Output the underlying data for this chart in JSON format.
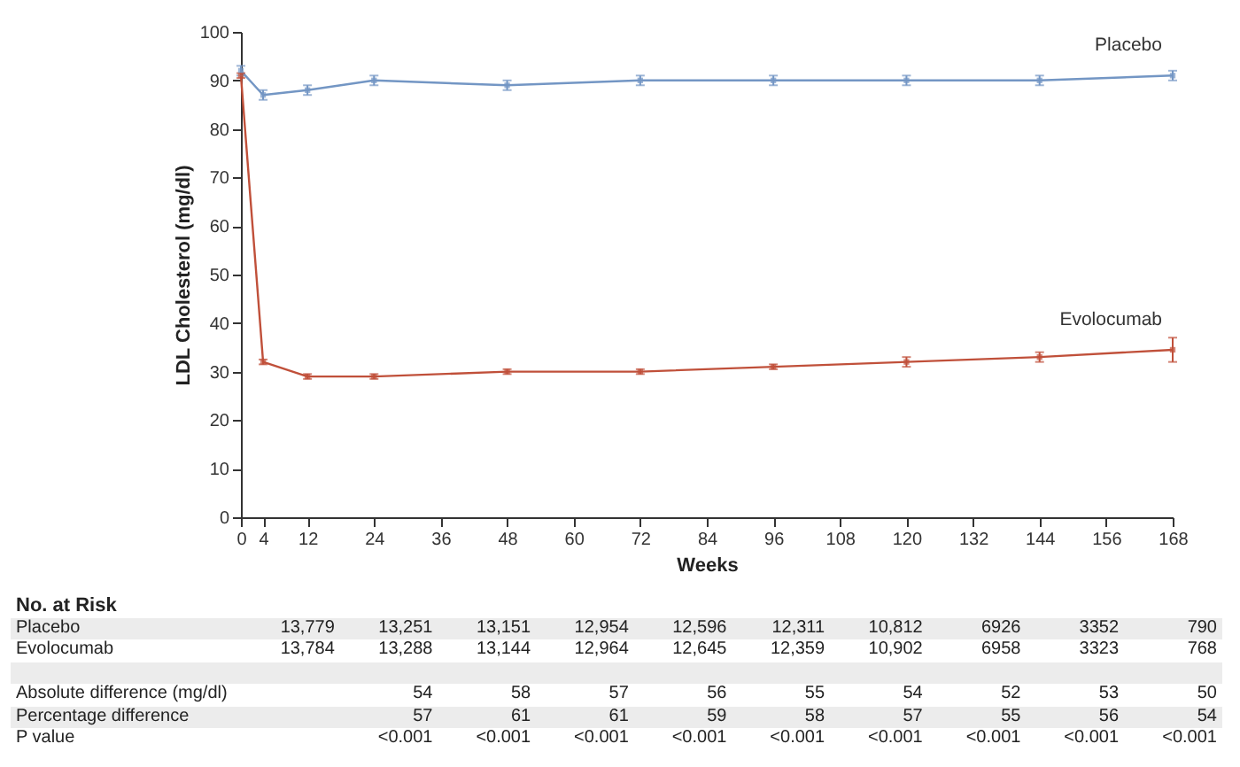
{
  "chart_data": {
    "type": "line",
    "xlabel": "Weeks",
    "ylabel": "LDL Cholesterol (mg/dl)",
    "x": [
      0,
      4,
      12,
      24,
      48,
      72,
      96,
      120,
      144,
      168
    ],
    "series": [
      {
        "name": "Placebo",
        "color": "#7396c4",
        "values": [
          92,
          87,
          88,
          90,
          89,
          90,
          90,
          90,
          90,
          91
        ],
        "errors": [
          1,
          1,
          1,
          1,
          1,
          1,
          1,
          1,
          1,
          1
        ]
      },
      {
        "name": "Evolocumab",
        "color": "#c0503a",
        "values": [
          91,
          32,
          29,
          29,
          30,
          30,
          31,
          32,
          33,
          34.5
        ],
        "errors": [
          0.5,
          0.5,
          0.5,
          0.5,
          0.5,
          0.5,
          0.5,
          1,
          1,
          2.5
        ]
      }
    ],
    "xlim": [
      0,
      168
    ],
    "xticks": [
      0,
      4,
      12,
      24,
      36,
      48,
      60,
      72,
      84,
      96,
      108,
      120,
      132,
      144,
      156,
      168
    ],
    "ylim": [
      0,
      100
    ],
    "yticks": [
      0,
      10,
      20,
      30,
      40,
      50,
      60,
      70,
      80,
      90,
      100
    ],
    "grid": false,
    "legend": false,
    "marker": "square",
    "line_style": "solid",
    "annotations": [
      "No. at Risk",
      "Placebo",
      "13,779",
      "13,251",
      "13,151",
      "12,954",
      "12,596",
      "12,311",
      "10,812",
      "6926",
      "3352",
      "790",
      "Evolocumab",
      "13,784",
      "13,288",
      "13,144",
      "12,964",
      "12,645",
      "12,359",
      "10,902",
      "6958",
      "3323",
      "768",
      "Absolute difference (mg/dl)",
      "54",
      "58",
      "57",
      "56",
      "55",
      "54",
      "52",
      "53",
      "50",
      "Percentage difference",
      "57",
      "61",
      "61",
      "59",
      "58",
      "57",
      "55",
      "56",
      "54",
      "P value",
      "<0.001",
      "<0.001",
      "<0.001",
      "<0.001",
      "<0.001",
      "<0.001",
      "<0.001",
      "<0.001",
      "<0.001"
    ]
  }
}
